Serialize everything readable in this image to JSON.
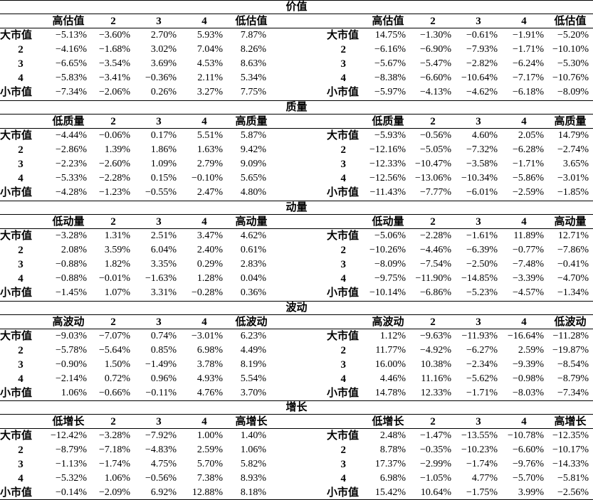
{
  "sections": [
    {
      "title": "价值",
      "left": {
        "headers": [
          "高估值",
          "2",
          "3",
          "4",
          "低估值"
        ],
        "rows": [
          {
            "label": "大市值",
            "values": [
              "−5.13%",
              "−3.60%",
              "2.70%",
              "5.93%",
              "7.87%"
            ]
          },
          {
            "label": "2",
            "values": [
              "−4.16%",
              "−1.68%",
              "3.02%",
              "7.04%",
              "8.26%"
            ]
          },
          {
            "label": "3",
            "values": [
              "−6.65%",
              "−3.54%",
              "3.69%",
              "4.53%",
              "8.63%"
            ]
          },
          {
            "label": "4",
            "values": [
              "−5.83%",
              "−3.41%",
              "−0.36%",
              "2.11%",
              "5.34%"
            ]
          },
          {
            "label": "小市值",
            "values": [
              "−7.34%",
              "−2.06%",
              "0.26%",
              "3.27%",
              "7.75%"
            ]
          }
        ]
      },
      "right": {
        "headers": [
          "高估值",
          "2",
          "3",
          "4",
          "低估值"
        ],
        "rows": [
          {
            "label": "大市值",
            "values": [
              "14.75%",
              "−1.30%",
              "−0.61%",
              "−1.91%",
              "−5.20%"
            ]
          },
          {
            "label": "2",
            "values": [
              "−6.16%",
              "−6.90%",
              "−7.93%",
              "−1.71%",
              "−10.10%"
            ]
          },
          {
            "label": "3",
            "values": [
              "−5.67%",
              "−5.47%",
              "−2.82%",
              "−6.24%",
              "−5.30%"
            ]
          },
          {
            "label": "4",
            "values": [
              "−8.38%",
              "−6.60%",
              "−10.64%",
              "−7.17%",
              "−10.76%"
            ]
          },
          {
            "label": "小市值",
            "values": [
              "−5.97%",
              "−4.13%",
              "−4.62%",
              "−6.18%",
              "−8.09%"
            ]
          }
        ]
      }
    },
    {
      "title": "质量",
      "left": {
        "headers": [
          "低质量",
          "2",
          "3",
          "4",
          "高质量"
        ],
        "rows": [
          {
            "label": "大市值",
            "values": [
              "−4.44%",
              "−0.06%",
              "0.17%",
              "5.51%",
              "5.87%"
            ]
          },
          {
            "label": "2",
            "values": [
              "−2.86%",
              "1.39%",
              "1.86%",
              "1.63%",
              "9.42%"
            ]
          },
          {
            "label": "3",
            "values": [
              "−2.23%",
              "−2.60%",
              "1.09%",
              "2.79%",
              "9.09%"
            ]
          },
          {
            "label": "4",
            "values": [
              "−5.33%",
              "−2.28%",
              "0.15%",
              "−0.10%",
              "5.65%"
            ]
          },
          {
            "label": "小市值",
            "values": [
              "−4.28%",
              "−1.23%",
              "−0.55%",
              "2.47%",
              "4.80%"
            ]
          }
        ]
      },
      "right": {
        "headers": [
          "低质量",
          "2",
          "3",
          "4",
          "高质量"
        ],
        "rows": [
          {
            "label": "大市值",
            "values": [
              "−5.93%",
              "−0.56%",
              "4.60%",
              "2.05%",
              "14.79%"
            ]
          },
          {
            "label": "2",
            "values": [
              "−12.16%",
              "−5.05%",
              "−7.32%",
              "−6.28%",
              "−2.74%"
            ]
          },
          {
            "label": "3",
            "values": [
              "−12.33%",
              "−10.47%",
              "−3.58%",
              "−1.71%",
              "3.65%"
            ]
          },
          {
            "label": "4",
            "values": [
              "−12.56%",
              "−13.06%",
              "−10.34%",
              "−5.86%",
              "−3.01%"
            ]
          },
          {
            "label": "小市值",
            "values": [
              "−11.43%",
              "−7.77%",
              "−6.01%",
              "−2.59%",
              "−1.85%"
            ]
          }
        ]
      }
    },
    {
      "title": "动量",
      "left": {
        "headers": [
          "低动量",
          "2",
          "3",
          "4",
          "高动量"
        ],
        "rows": [
          {
            "label": "大市值",
            "values": [
              "−3.28%",
              "1.31%",
              "2.51%",
              "3.47%",
              "4.62%"
            ]
          },
          {
            "label": "2",
            "values": [
              "2.08%",
              "3.59%",
              "6.04%",
              "2.40%",
              "0.61%"
            ]
          },
          {
            "label": "3",
            "values": [
              "−0.88%",
              "1.82%",
              "3.35%",
              "0.29%",
              "2.83%"
            ]
          },
          {
            "label": "4",
            "values": [
              "−0.88%",
              "−0.01%",
              "−1.63%",
              "1.28%",
              "0.04%"
            ]
          },
          {
            "label": "小市值",
            "values": [
              "−1.45%",
              "1.07%",
              "3.31%",
              "−0.28%",
              "0.36%"
            ]
          }
        ]
      },
      "right": {
        "headers": [
          "低动量",
          "2",
          "3",
          "4",
          "高动量"
        ],
        "rows": [
          {
            "label": "大市值",
            "values": [
              "−5.06%",
              "−2.28%",
              "−1.61%",
              "11.89%",
              "12.71%"
            ]
          },
          {
            "label": "2",
            "values": [
              "−10.26%",
              "−4.46%",
              "−6.39%",
              "−0.77%",
              "−7.86%"
            ]
          },
          {
            "label": "3",
            "values": [
              "−8.09%",
              "−7.54%",
              "−2.50%",
              "−7.48%",
              "−0.41%"
            ]
          },
          {
            "label": "4",
            "values": [
              "−9.75%",
              "−11.90%",
              "−14.85%",
              "−3.39%",
              "−4.70%"
            ]
          },
          {
            "label": "小市值",
            "values": [
              "−10.14%",
              "−6.86%",
              "−5.23%",
              "−4.57%",
              "−1.34%"
            ]
          }
        ]
      }
    },
    {
      "title": "波动",
      "left": {
        "headers": [
          "高波动",
          "2",
          "3",
          "4",
          "低波动"
        ],
        "rows": [
          {
            "label": "大市值",
            "values": [
              "−9.03%",
              "−7.07%",
              "0.74%",
              "−3.01%",
              "6.23%"
            ]
          },
          {
            "label": "2",
            "values": [
              "−5.78%",
              "−5.64%",
              "0.85%",
              "6.98%",
              "4.49%"
            ]
          },
          {
            "label": "3",
            "values": [
              "−0.90%",
              "1.50%",
              "−1.49%",
              "3.78%",
              "8.19%"
            ]
          },
          {
            "label": "4",
            "values": [
              "−2.14%",
              "0.72%",
              "0.96%",
              "4.93%",
              "5.54%"
            ]
          },
          {
            "label": "小市值",
            "values": [
              "1.06%",
              "−0.66%",
              "−0.11%",
              "4.76%",
              "3.70%"
            ]
          }
        ]
      },
      "right": {
        "headers": [
          "高波动",
          "2",
          "3",
          "4",
          "低波动"
        ],
        "rows": [
          {
            "label": "大市值",
            "values": [
              "1.12%",
              "−9.63%",
              "−11.93%",
              "−16.64%",
              "−11.28%"
            ]
          },
          {
            "label": "2",
            "values": [
              "11.77%",
              "−4.92%",
              "−6.27%",
              "2.59%",
              "−19.87%"
            ]
          },
          {
            "label": "3",
            "values": [
              "16.00%",
              "10.38%",
              "−2.34%",
              "−9.39%",
              "−8.54%"
            ]
          },
          {
            "label": "4",
            "values": [
              "4.46%",
              "11.16%",
              "−5.62%",
              "−0.98%",
              "−8.79%"
            ]
          },
          {
            "label": "小市值",
            "values": [
              "14.78%",
              "12.33%",
              "−1.71%",
              "−8.03%",
              "−7.34%"
            ]
          }
        ]
      }
    },
    {
      "title": "增长",
      "left": {
        "headers": [
          "低增长",
          "2",
          "3",
          "4",
          "高增长"
        ],
        "rows": [
          {
            "label": "大市值",
            "values": [
              "−12.42%",
              "−3.28%",
              "−7.92%",
              "1.00%",
              "1.40%"
            ]
          },
          {
            "label": "2",
            "values": [
              "−8.79%",
              "−7.18%",
              "−4.83%",
              "2.59%",
              "1.06%"
            ]
          },
          {
            "label": "3",
            "values": [
              "−1.13%",
              "−1.74%",
              "4.75%",
              "5.70%",
              "5.82%"
            ]
          },
          {
            "label": "4",
            "values": [
              "−5.32%",
              "1.06%",
              "−0.56%",
              "7.38%",
              "8.93%"
            ]
          },
          {
            "label": "小市值",
            "values": [
              "−0.14%",
              "−2.09%",
              "6.92%",
              "12.88%",
              "8.18%"
            ]
          }
        ]
      },
      "right": {
        "headers": [
          "低增长",
          "2",
          "3",
          "4",
          "高增长"
        ],
        "rows": [
          {
            "label": "大市值",
            "values": [
              "2.48%",
              "−1.47%",
              "−13.55%",
              "−10.78%",
              "−12.35%"
            ]
          },
          {
            "label": "2",
            "values": [
              "8.78%",
              "−0.35%",
              "−10.23%",
              "−6.60%",
              "−10.17%"
            ]
          },
          {
            "label": "3",
            "values": [
              "17.37%",
              "−2.99%",
              "−1.74%",
              "−9.76%",
              "−14.33%"
            ]
          },
          {
            "label": "4",
            "values": [
              "6.98%",
              "−1.05%",
              "4.77%",
              "−5.70%",
              "−5.81%"
            ]
          },
          {
            "label": "小市值",
            "values": [
              "15.42%",
              "10.64%",
              "−1.75%",
              "3.99%",
              "−2.56%"
            ]
          }
        ]
      }
    }
  ]
}
